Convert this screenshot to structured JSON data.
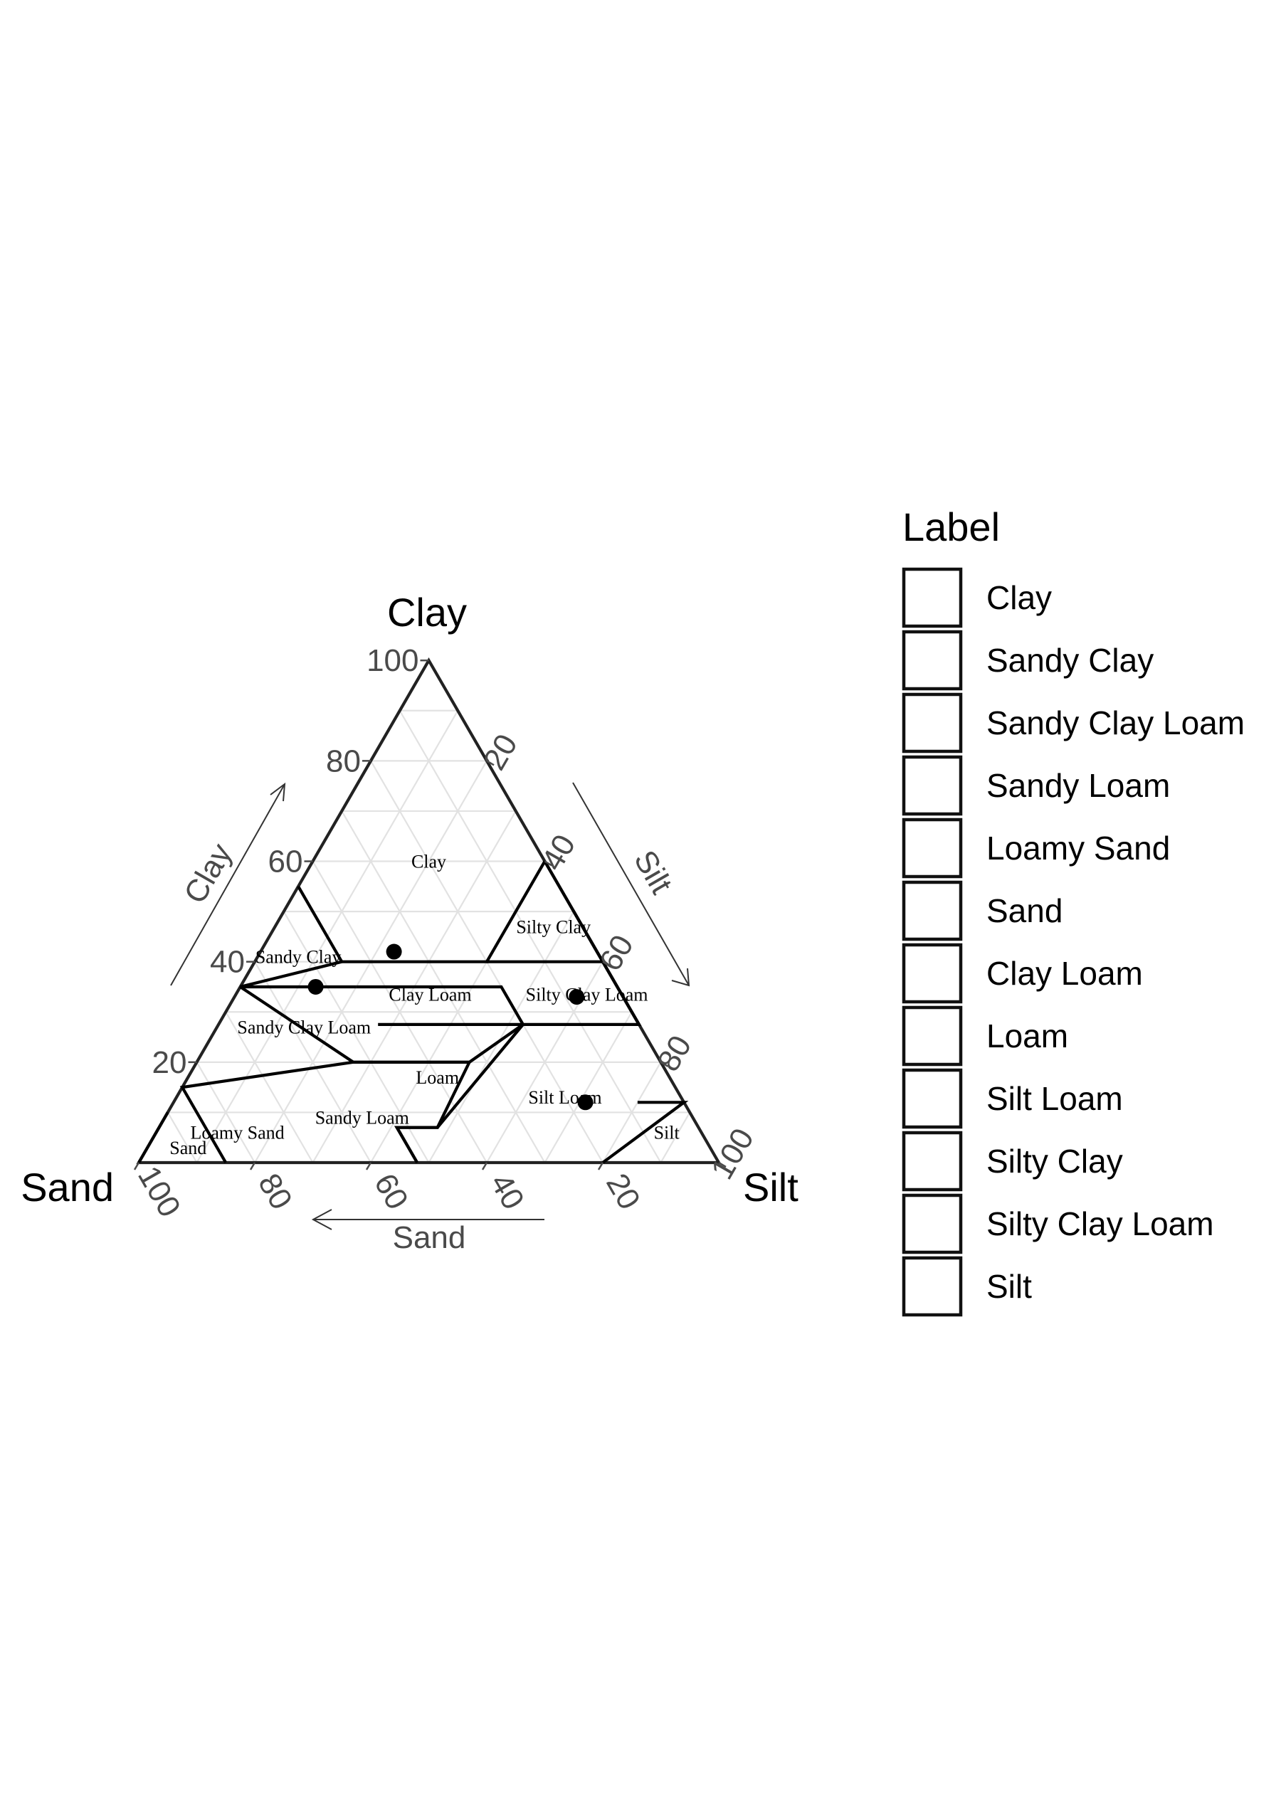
{
  "chart_data": {
    "type": "scatter",
    "subtype": "ternary",
    "axes": {
      "top": {
        "name": "Clay",
        "arrow_label": "Clay"
      },
      "left": {
        "name": "Sand",
        "arrow_label": "Sand"
      },
      "right": {
        "name": "Silt",
        "arrow_label": "Silt"
      }
    },
    "ticks": [
      "20",
      "40",
      "60",
      "80",
      "100"
    ],
    "tick_values": [
      20,
      40,
      60,
      80,
      100
    ],
    "grid": true,
    "grid_step": 10,
    "regions": [
      {
        "name": "Clay",
        "label": "Clay",
        "label_at": {
          "clay": 60,
          "sand": 20
        },
        "points": [
          [
            100,
            0
          ],
          [
            55,
            45
          ],
          [
            40,
            45
          ],
          [
            40,
            20
          ],
          [
            60,
            0
          ]
        ],
        "closed": false
      },
      {
        "name": "Sandy Clay",
        "label": "Sandy Clay",
        "label_at": {
          "clay": 41,
          "sand": 52
        }
      },
      {
        "name": "Sandy Clay Loam",
        "label": "Sandy Clay Loam",
        "label_at": {
          "clay": 27,
          "sand": 58
        }
      },
      {
        "name": "Sandy Loam",
        "label": "Sandy Loam",
        "label_at": {
          "clay": 9,
          "sand": 57
        }
      },
      {
        "name": "Loamy Sand",
        "label": "Loamy Sand",
        "label_at": {
          "clay": 6,
          "sand": 80
        }
      },
      {
        "name": "Sand",
        "label": "Sand",
        "label_at": {
          "clay": 3,
          "sand": 90
        }
      },
      {
        "name": "Clay Loam",
        "label": "Clay Loam",
        "label_at": {
          "clay": 33.5,
          "sand": 33
        }
      },
      {
        "name": "Loam",
        "label": "Loam",
        "label_at": {
          "clay": 17,
          "sand": 40
        }
      },
      {
        "name": "Silt Loam",
        "label": "Silt Loam",
        "label_at": {
          "clay": 13,
          "sand": 20
        }
      },
      {
        "name": "Silty Clay",
        "label": "Silty Clay",
        "label_at": {
          "clay": 47,
          "sand": 5
        }
      },
      {
        "name": "Silty Clay Loam",
        "label": "Silty Clay Loam",
        "label_at": {
          "clay": 33.5,
          "sand": 6
        }
      },
      {
        "name": "Silt",
        "label": "Silt",
        "label_at": {
          "clay": 6,
          "sand": 6
        }
      }
    ],
    "boundaries": [
      [
        [
          55,
          45
        ],
        [
          40,
          45
        ],
        [
          40,
          20
        ],
        [
          60,
          0
        ]
      ],
      [
        [
          35,
          45
        ],
        [
          35,
          65
        ],
        [
          40,
          45
        ]
      ],
      [
        [
          35,
          45
        ],
        [
          35,
          20
        ],
        [
          27.5,
          20
        ],
        [
          20,
          33
        ],
        [
          20,
          53
        ],
        [
          35,
          65
        ]
      ],
      [
        [
          20,
          53
        ],
        [
          20,
          33
        ],
        [
          7,
          45
        ],
        [
          7,
          52
        ],
        [
          0,
          52
        ]
      ],
      [
        [
          20,
          53
        ],
        [
          15,
          85
        ],
        [
          0,
          85
        ]
      ],
      [
        [
          10,
          90
        ],
        [
          0,
          100
        ]
      ],
      [
        [
          0,
          52
        ],
        [
          7,
          52
        ],
        [
          7,
          45
        ],
        [
          27.5,
          20
        ],
        [
          27.5,
          0
        ],
        [
          50,
          0
        ]
      ],
      [
        [
          40,
          20
        ],
        [
          40,
          0
        ],
        [
          60,
          0
        ]
      ],
      [
        [
          40,
          0
        ],
        [
          27.5,
          0
        ]
      ],
      [
        [
          12,
          8
        ],
        [
          12,
          0
        ],
        [
          0,
          20
        ]
      ],
      [
        [
          27.5,
          20
        ],
        [
          27.5,
          45
        ]
      ]
    ],
    "points": [
      {
        "clay": 42,
        "sand": 35,
        "silt": 23
      },
      {
        "clay": 35,
        "sand": 52,
        "silt": 13
      },
      {
        "clay": 33,
        "sand": 8,
        "silt": 59
      },
      {
        "clay": 12,
        "sand": 17,
        "silt": 71
      }
    ],
    "legend": {
      "title": "Label",
      "entries": [
        "Clay",
        "Sandy Clay",
        "Sandy Clay Loam",
        "Sandy Loam",
        "Loamy Sand",
        "Sand",
        "Clay Loam",
        "Loam",
        "Silt Loam",
        "Silty Clay",
        "Silty Clay Loam",
        "Silt"
      ],
      "position": "right"
    }
  },
  "colors": {
    "frame": "#222222",
    "grid": "#e2e2e2",
    "region_lines": "#000000",
    "ticks": "#4a4a4a",
    "points": "#000000",
    "legend_key_fill": "#ffffff"
  }
}
